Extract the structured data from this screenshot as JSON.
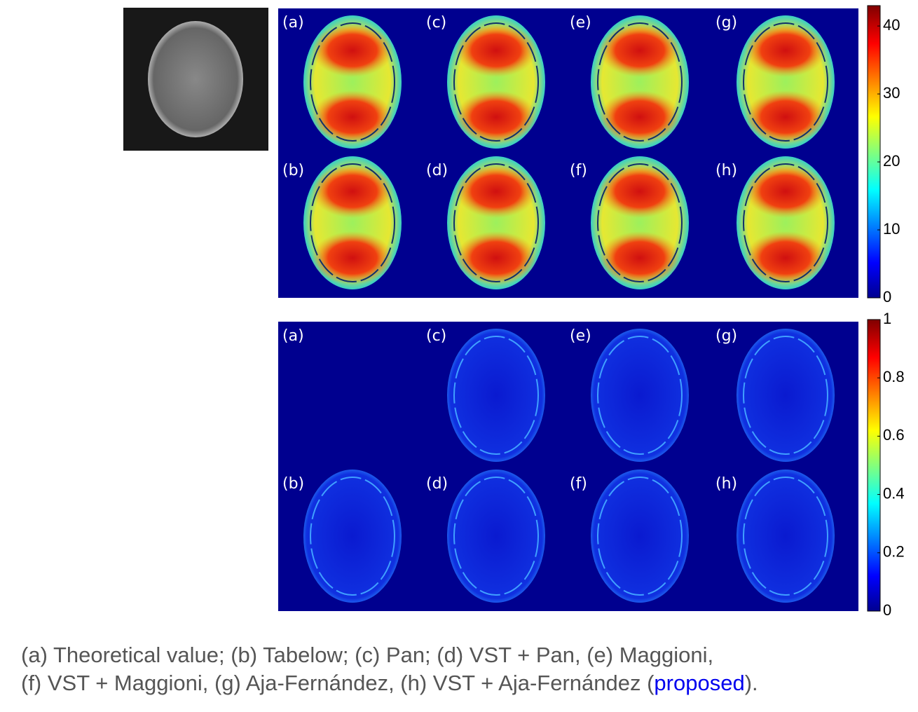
{
  "top_panel": {
    "labels": [
      "(a)",
      "(c)",
      "(e)",
      "(g)",
      "(b)",
      "(d)",
      "(f)",
      "(h)"
    ],
    "colorbar": {
      "lim": [
        0,
        43
      ],
      "ticks": [
        0,
        10,
        20,
        30,
        40
      ]
    }
  },
  "bottom_panel": {
    "labels": [
      "(a)",
      "(c)",
      "(e)",
      "(g)",
      "(b)",
      "(d)",
      "(f)",
      "(h)"
    ],
    "colorbar": {
      "lim": [
        0,
        1
      ],
      "ticks": [
        0,
        0.2,
        0.4,
        0.6,
        0.8,
        1
      ]
    }
  },
  "caption": {
    "line1": "(a) Theoretical value; (b) Tabelow; (c) Pan; (d) VST + Pan, (e) Maggioni,",
    "line2": "(f) VST + Maggioni, (g) Aja-Fernández, (h) VST + Aja-Fernández (",
    "highlight": "proposed",
    "line2_end": ")."
  }
}
